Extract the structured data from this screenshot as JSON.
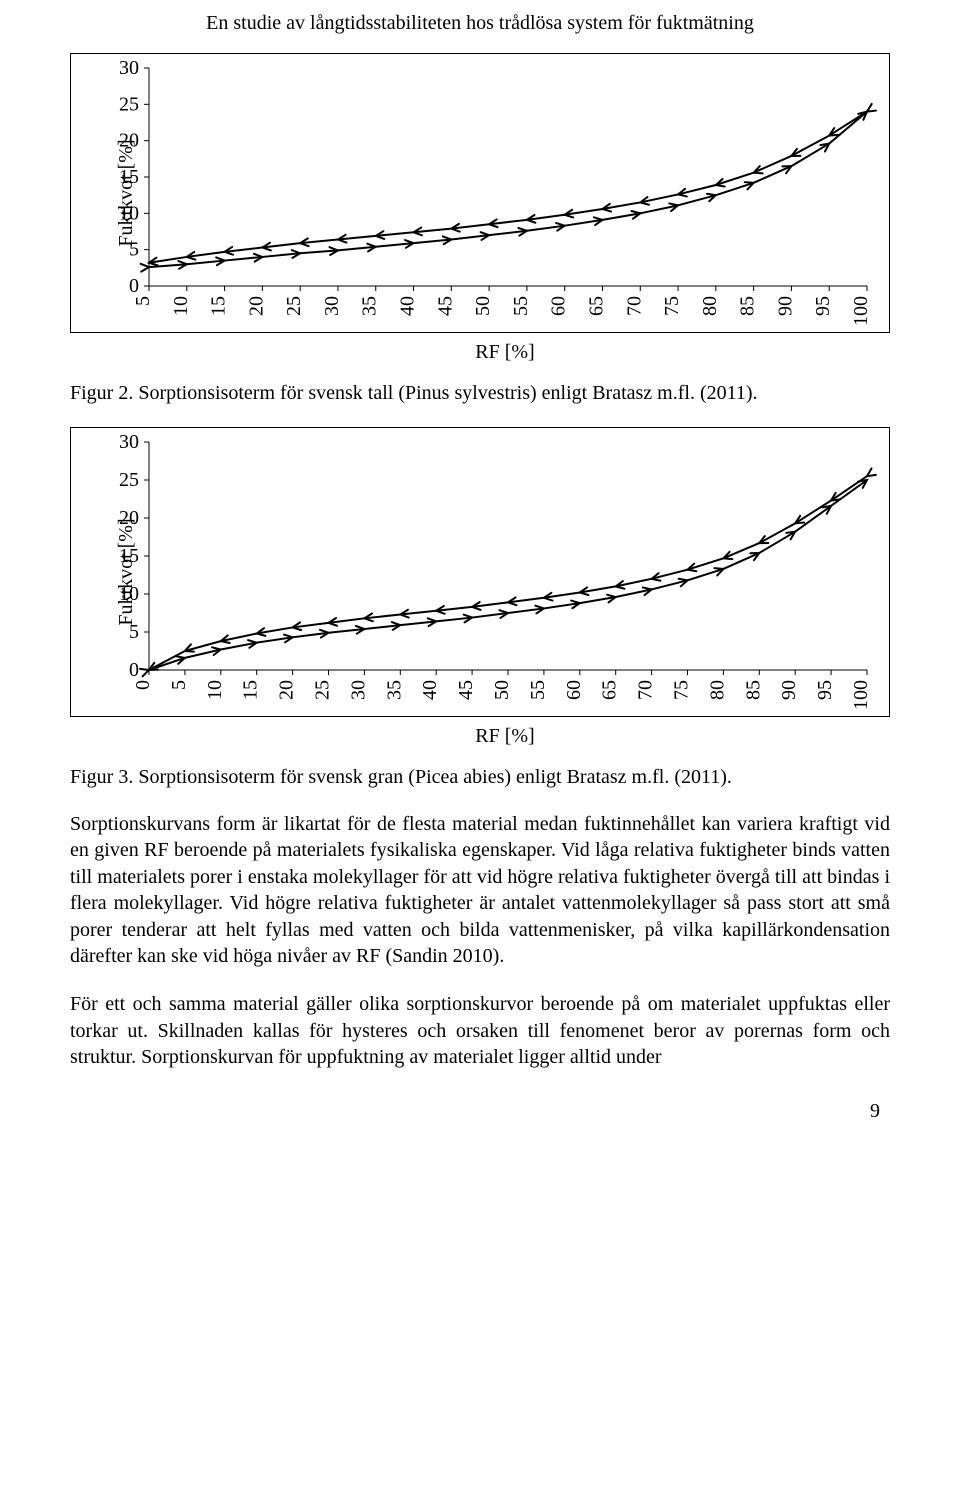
{
  "running_head": "En studie av långtidsstabiliteten hos trådlösa system för fuktmätning",
  "page_number": "9",
  "chart1": {
    "type": "line",
    "y_label": "Fuktkvot [%]",
    "x_label": "RF [%]",
    "xlim": [
      5,
      100
    ],
    "ylim": [
      0,
      30
    ],
    "xticks": [
      5,
      10,
      15,
      20,
      25,
      30,
      35,
      40,
      45,
      50,
      55,
      60,
      65,
      70,
      75,
      80,
      85,
      90,
      95,
      100
    ],
    "yticks": [
      0,
      5,
      10,
      15,
      20,
      25,
      30
    ],
    "xtick_labels": [
      "5",
      "10",
      "15",
      "20",
      "25",
      "30",
      "35",
      "40",
      "45",
      "50",
      "55",
      "60",
      "65",
      "70",
      "75",
      "80",
      "85",
      "90",
      "95",
      "100"
    ],
    "ytick_labels": [
      "0",
      "5",
      "10",
      "15",
      "20",
      "25",
      "30"
    ],
    "tick_fontsize": 20,
    "label_fontsize": 20,
    "line_color": "#000000",
    "line_width": 2,
    "marker_size": 9,
    "background_color": "#ffffff",
    "border_color": "#000000",
    "series_upper": {
      "x": [
        5,
        10,
        15,
        20,
        25,
        30,
        35,
        40,
        45,
        50,
        55,
        60,
        65,
        70,
        75,
        80,
        85,
        90,
        95,
        100
      ],
      "y": [
        3.2,
        4.0,
        4.7,
        5.3,
        5.9,
        6.4,
        6.9,
        7.4,
        7.9,
        8.5,
        9.1,
        9.8,
        10.6,
        11.5,
        12.6,
        13.9,
        15.6,
        17.9,
        20.7,
        24.0
      ],
      "direction": "left"
    },
    "series_lower": {
      "x": [
        5,
        10,
        15,
        20,
        25,
        30,
        35,
        40,
        45,
        50,
        55,
        60,
        65,
        70,
        75,
        80,
        85,
        90,
        95,
        100
      ],
      "y": [
        2.6,
        3.0,
        3.5,
        4.0,
        4.5,
        4.9,
        5.4,
        5.9,
        6.4,
        7.0,
        7.6,
        8.3,
        9.1,
        10.0,
        11.1,
        12.5,
        14.2,
        16.5,
        19.6,
        24.0
      ],
      "direction": "right"
    }
  },
  "caption1": "Figur 2. Sorptionsisoterm för svensk tall (Pinus sylvestris) enligt Bratasz m.fl. (2011).",
  "chart2": {
    "type": "line",
    "y_label": "Fuktkvot [%]",
    "x_label": "RF [%]",
    "xlim": [
      0,
      100
    ],
    "ylim": [
      0,
      30
    ],
    "xticks": [
      0,
      5,
      10,
      15,
      20,
      25,
      30,
      35,
      40,
      45,
      50,
      55,
      60,
      65,
      70,
      75,
      80,
      85,
      90,
      95,
      100
    ],
    "yticks": [
      0,
      5,
      10,
      15,
      20,
      25,
      30
    ],
    "xtick_labels": [
      "0",
      "5",
      "10",
      "15",
      "20",
      "25",
      "30",
      "35",
      "40",
      "45",
      "50",
      "55",
      "60",
      "65",
      "70",
      "75",
      "80",
      "85",
      "90",
      "95",
      "100"
    ],
    "ytick_labels": [
      "0",
      "5",
      "10",
      "15",
      "20",
      "25",
      "30"
    ],
    "tick_fontsize": 20,
    "label_fontsize": 20,
    "line_color": "#000000",
    "line_width": 2,
    "marker_size": 9,
    "background_color": "#ffffff",
    "border_color": "#000000",
    "series_upper": {
      "x": [
        0,
        5,
        10,
        15,
        20,
        25,
        30,
        35,
        40,
        45,
        50,
        55,
        60,
        65,
        70,
        75,
        80,
        85,
        90,
        95,
        100
      ],
      "y": [
        0,
        2.5,
        3.8,
        4.8,
        5.6,
        6.2,
        6.8,
        7.3,
        7.8,
        8.3,
        8.9,
        9.5,
        10.2,
        11.0,
        12.0,
        13.2,
        14.7,
        16.7,
        19.3,
        22.3,
        25.5
      ],
      "direction": "left"
    },
    "series_lower": {
      "x": [
        0,
        5,
        10,
        15,
        20,
        25,
        30,
        35,
        40,
        45,
        50,
        55,
        60,
        65,
        70,
        75,
        80,
        85,
        90,
        95,
        100
      ],
      "y": [
        0,
        1.6,
        2.7,
        3.6,
        4.3,
        4.9,
        5.4,
        5.9,
        6.4,
        6.9,
        7.5,
        8.1,
        8.8,
        9.6,
        10.6,
        11.8,
        13.3,
        15.4,
        18.2,
        21.6,
        25.0
      ],
      "direction": "right"
    }
  },
  "caption2": "Figur 3. Sorptionsisoterm för svensk gran (Picea abies) enligt Bratasz m.fl. (2011).",
  "para1": "Sorptionskurvans form är likartat för de flesta material medan fuktinnehållet kan variera kraftigt vid en given RF beroende på materialets fysikaliska egenskaper. Vid låga relativa fuktigheter binds vatten till materialets porer i enstaka molekyllager för att vid högre relativa fuktigheter övergå till att bindas i flera molekyllager. Vid högre relativa fuktigheter är antalet vattenmolekyllager så pass stort att små porer tenderar att helt fyllas med vatten och bilda vattenmenisker, på vilka kapillärkondensation därefter kan ske vid höga nivåer av RF (Sandin 2010).",
  "para2": "För ett och samma material gäller olika sorptionskurvor beroende på om materialet uppfuktas eller torkar ut. Skillnaden kallas för hysteres och orsaken till fenomenet beror av porernas form och struktur. Sorptionskurvan för uppfuktning av materialet ligger alltid under"
}
